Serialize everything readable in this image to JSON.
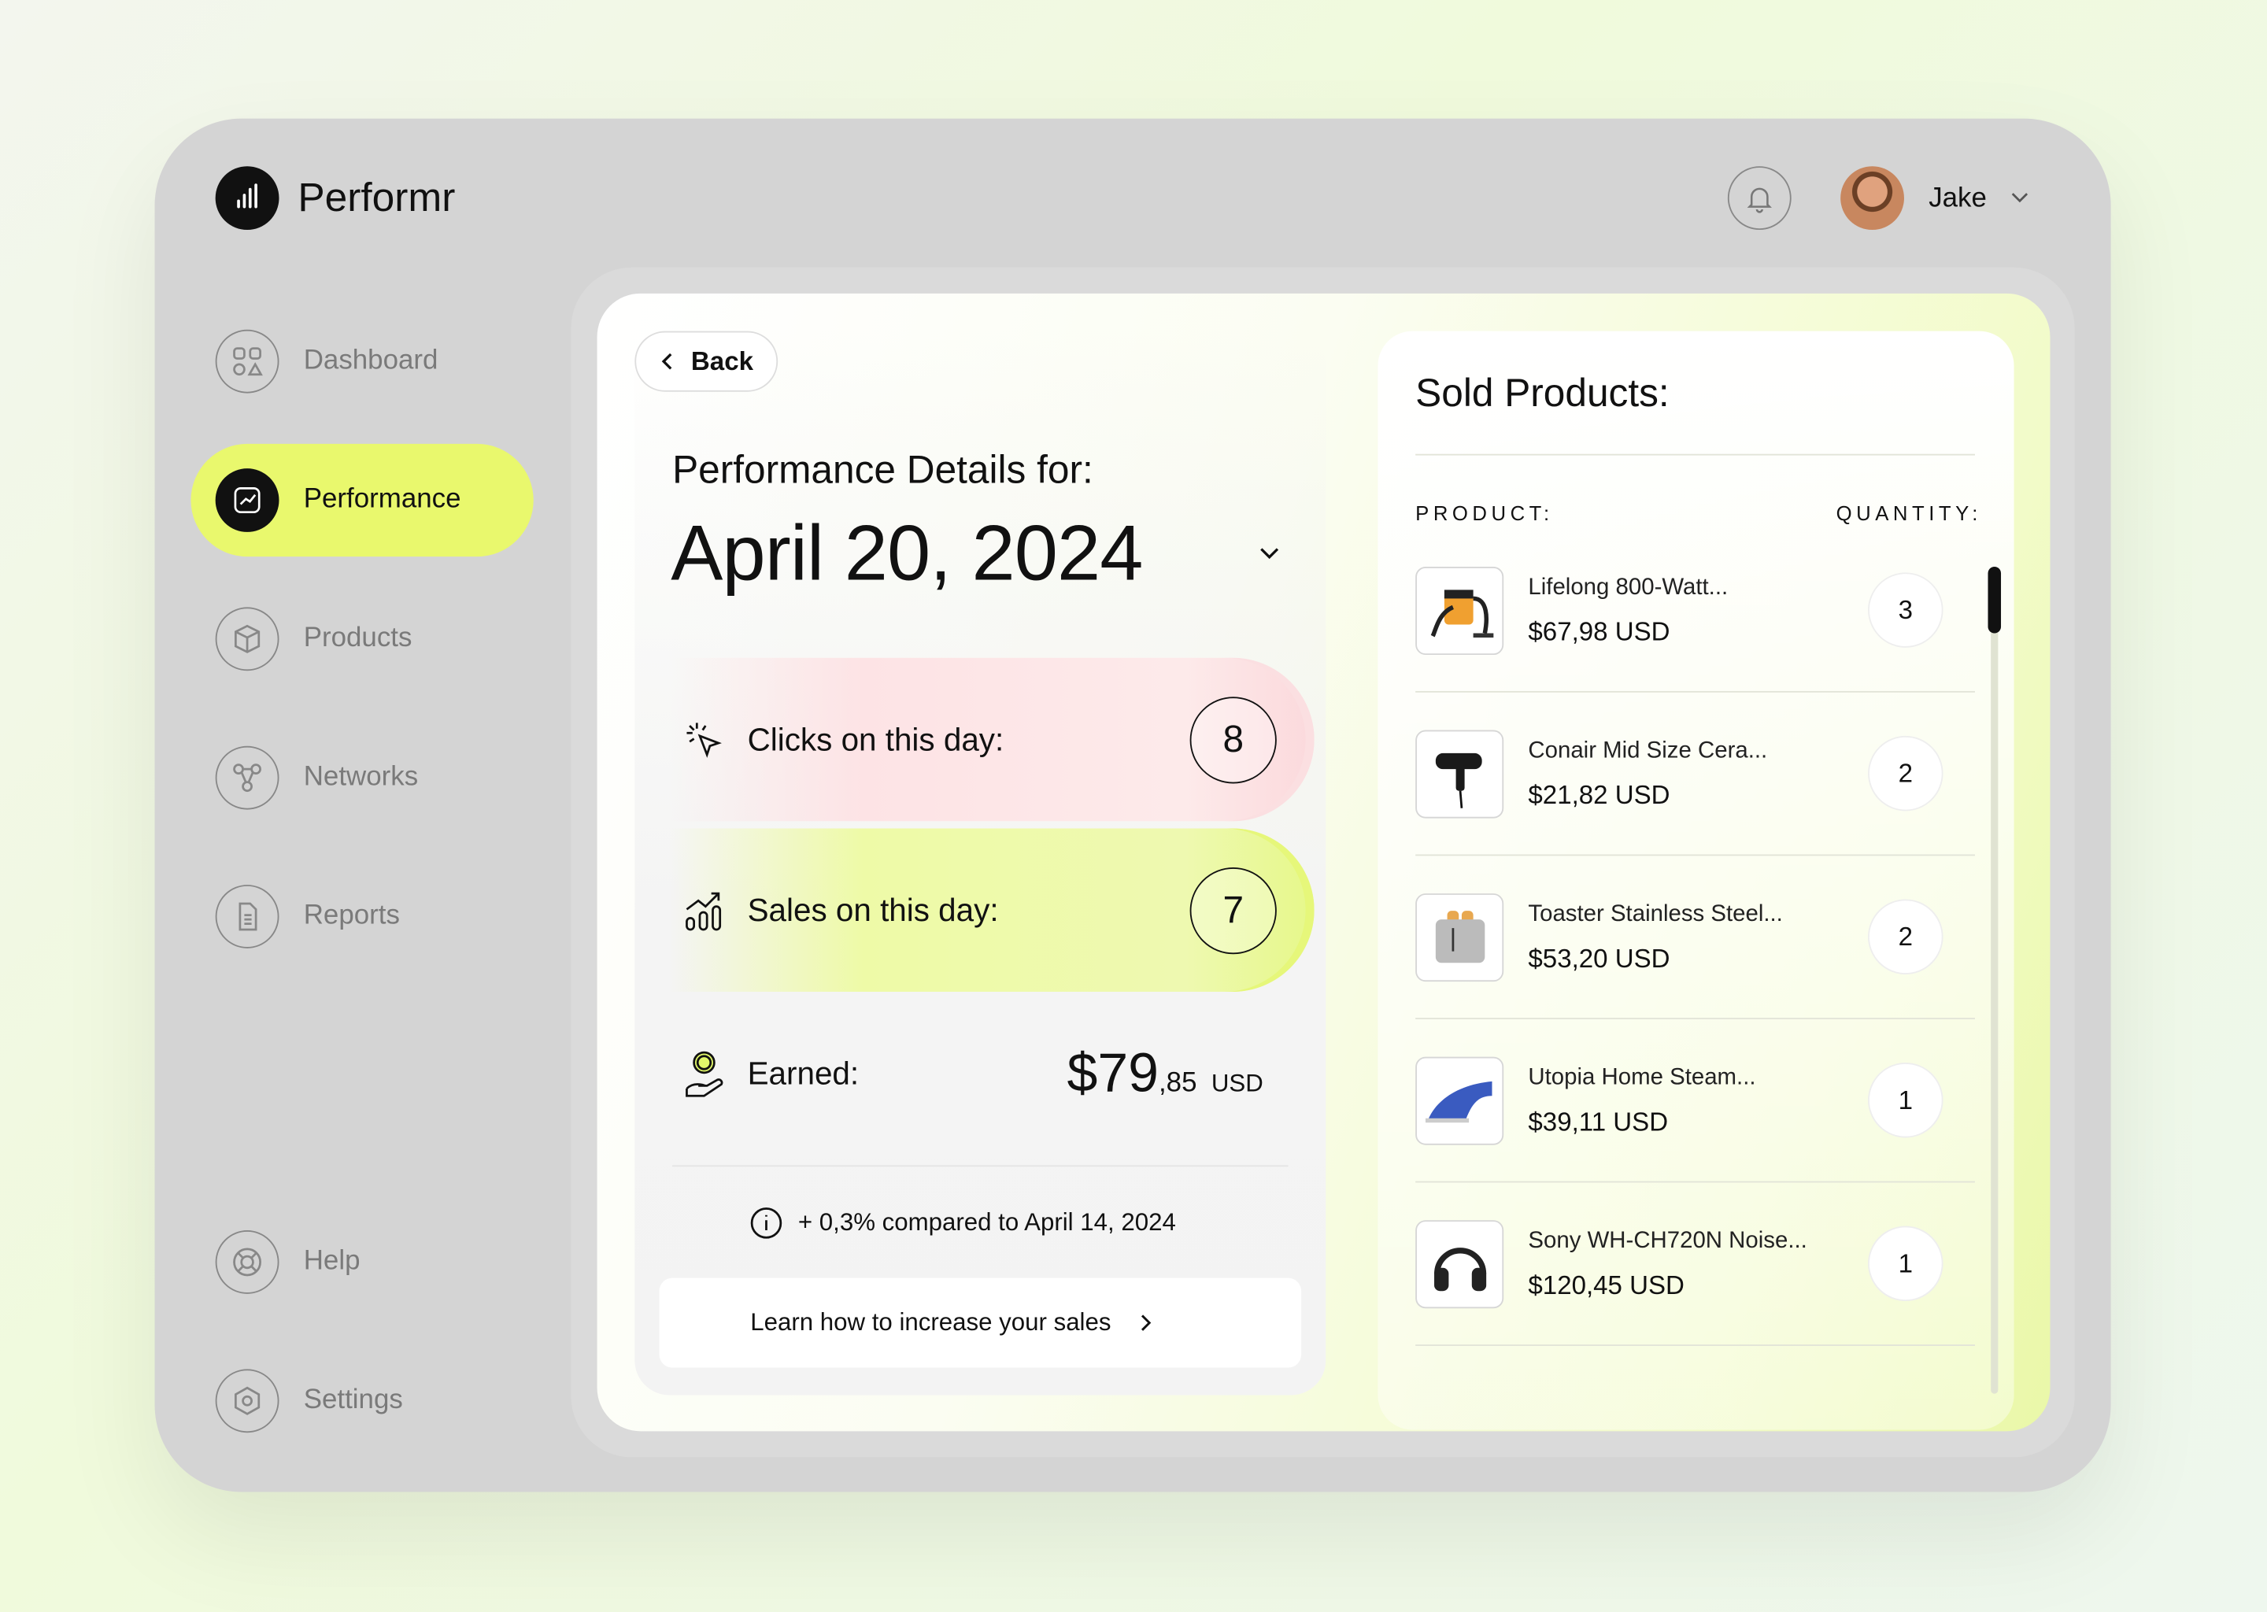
{
  "app": {
    "name": "Performr"
  },
  "header": {
    "user_name": "Jake"
  },
  "sidebar": {
    "items": [
      {
        "label": "Dashboard",
        "icon": "grid-shapes-icon"
      },
      {
        "label": "Performance",
        "icon": "chart-line-icon",
        "active": true
      },
      {
        "label": "Products",
        "icon": "box-icon"
      },
      {
        "label": "Networks",
        "icon": "network-icon"
      },
      {
        "label": "Reports",
        "icon": "document-icon"
      },
      {
        "label": "Help",
        "icon": "lifebuoy-icon"
      },
      {
        "label": "Settings",
        "icon": "gear-icon"
      }
    ]
  },
  "details": {
    "back_label": "Back",
    "heading": "Performance Details for:",
    "date": "April 20, 2024",
    "clicks_label": "Clicks on this day:",
    "clicks_value": "8",
    "sales_label": "Sales on this day:",
    "sales_value": "7",
    "earned_label": "Earned:",
    "earned_main": "$79",
    "earned_cents": ",85",
    "earned_currency": "USD",
    "comparison": "+ 0,3% compared to April 14, 2024",
    "learn_label": "Learn how to increase your sales"
  },
  "sold": {
    "title": "Sold Products:",
    "col_product": "PRODUCT:",
    "col_quantity": "QUANTITY:",
    "items": [
      {
        "name": "Lifelong 800-Watt...",
        "price": "$67,98 USD",
        "qty": "3"
      },
      {
        "name": "Conair Mid Size Cera...",
        "price": "$21,82 USD",
        "qty": "2"
      },
      {
        "name": "Toaster Stainless Steel...",
        "price": "$53,20 USD",
        "qty": "2"
      },
      {
        "name": "Utopia Home Steam...",
        "price": "$39,11 USD",
        "qty": "1"
      },
      {
        "name": "Sony WH-CH720N Noise...",
        "price": "$120,45 USD",
        "qty": "1"
      }
    ]
  },
  "colors": {
    "accent": "#e9f86d",
    "clicks_tint": "#fbd9dc",
    "sales_tint": "#eaf88a"
  }
}
